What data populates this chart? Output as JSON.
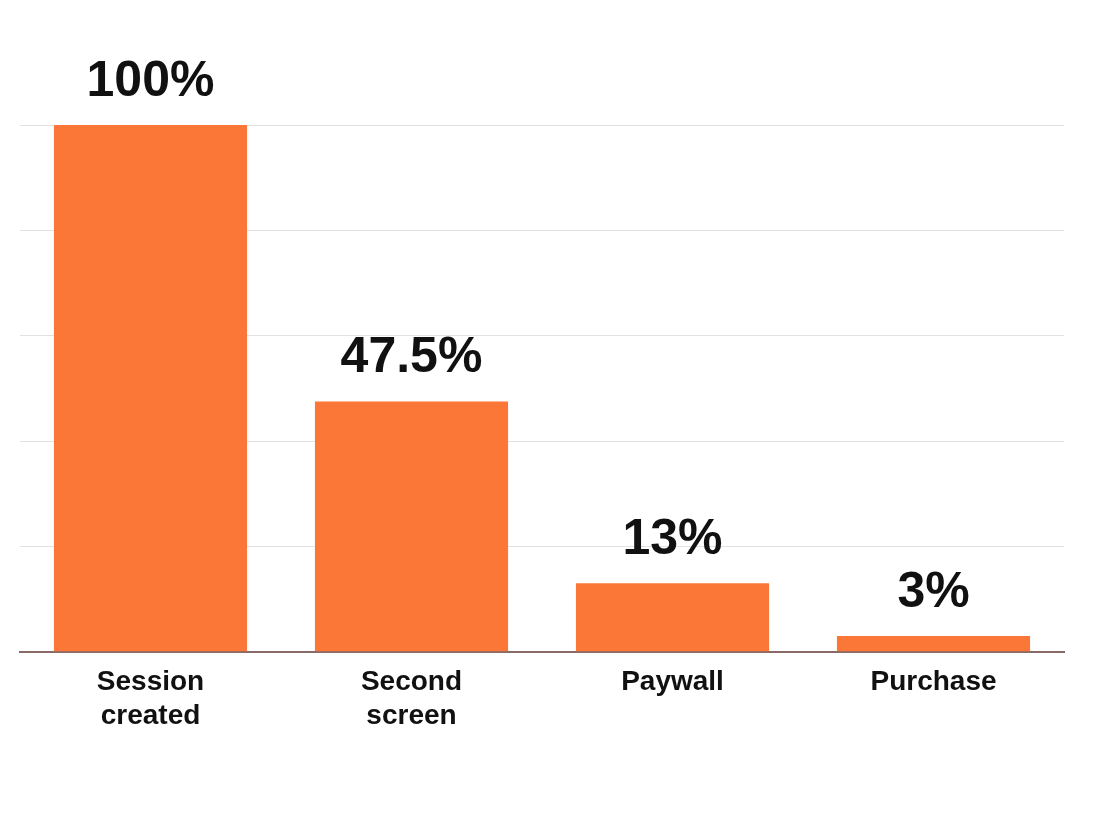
{
  "chart_data": {
    "type": "bar",
    "categories": [
      "Session created",
      "Second screen",
      "Paywall",
      "Purchase"
    ],
    "values": [
      100,
      47.5,
      13,
      3
    ],
    "color": "#fb7738",
    "value_labels": [
      "100%",
      "47.5%",
      "13%",
      "3%"
    ],
    "grid": "y",
    "tick_labels": "x",
    "legend": false
  }
}
